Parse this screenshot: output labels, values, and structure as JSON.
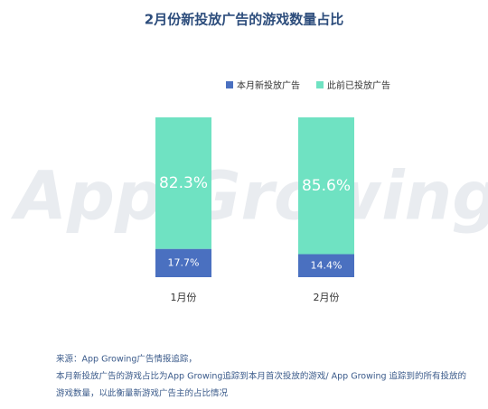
{
  "chart_data": {
    "type": "stacked_bar",
    "title": "2月份新投放广告的游戏数量占比",
    "watermark": "App Growing",
    "categories": [
      "1月份",
      "2月份"
    ],
    "series": [
      {
        "name": "本月新投放广告",
        "color": "#4a70c0",
        "values": [
          17.7,
          14.4
        ],
        "value_labels": [
          "17.7%",
          "14.4%"
        ]
      },
      {
        "name": "此前已投放广告",
        "color": "#6fe2c2",
        "values": [
          82.3,
          85.6
        ],
        "value_labels": [
          "82.3%",
          "85.6%"
        ]
      }
    ],
    "ylim": [
      0,
      100
    ],
    "notes": [
      "来源：App Growing广告情报追踪，",
      "本月新投放广告的游戏占比为App  Growing追踪到本月首次投放的游戏/ App Growing 追踪到的所有投放的",
      "游戏数量，以此衡量新游戏广告主的占比情况"
    ]
  }
}
